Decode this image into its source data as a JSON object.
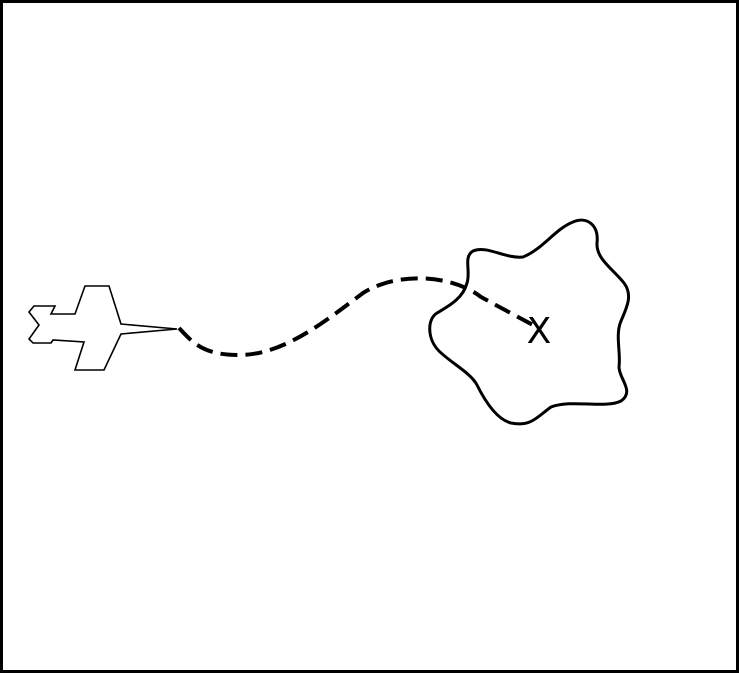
{
  "diagram": {
    "marker": "X",
    "icons": {
      "aircraft": "airplane-icon",
      "region": "island-outline",
      "path": "dashed-flight-path"
    },
    "colors": {
      "stroke": "#000000",
      "background": "#ffffff",
      "aircraft_fill": "#ffffff"
    }
  }
}
